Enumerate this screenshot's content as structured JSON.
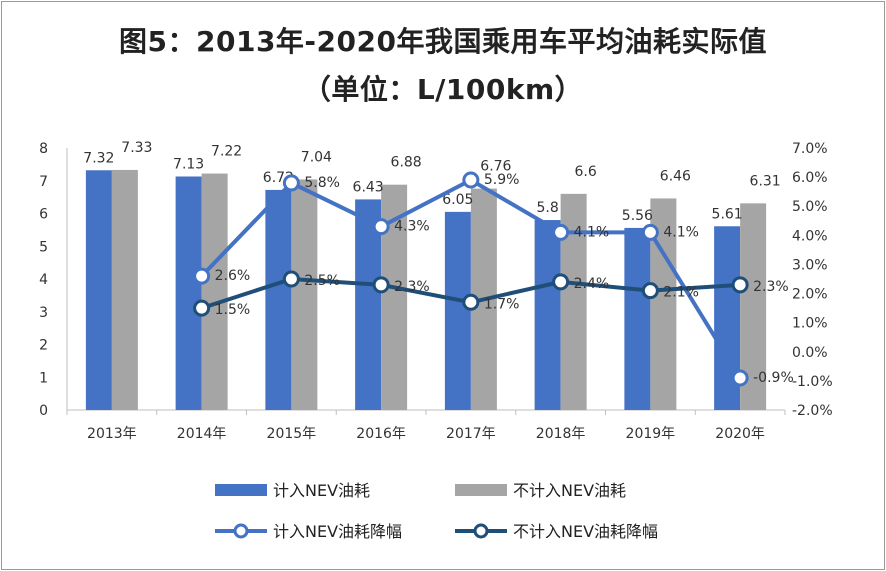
{
  "chart_data": {
    "type": "bar+line",
    "title": "图5：2013年-2020年我国乘用车平均油耗实际值",
    "subtitle": "（单位：L/100km）",
    "categories": [
      "2013年",
      "2014年",
      "2015年",
      "2016年",
      "2017年",
      "2018年",
      "2019年",
      "2020年"
    ],
    "left_axis": {
      "ylim": [
        0,
        8
      ],
      "ticks": [
        "0",
        "1",
        "2",
        "3",
        "4",
        "5",
        "6",
        "7",
        "8"
      ]
    },
    "right_axis": {
      "ylim": [
        -2.0,
        7.0
      ],
      "ticks": [
        "-2.0%",
        "-1.0%",
        "0.0%",
        "1.0%",
        "2.0%",
        "3.0%",
        "4.0%",
        "5.0%",
        "6.0%",
        "7.0%"
      ]
    },
    "bar_series": [
      {
        "name": "计入NEV油耗",
        "color": "#4472c4",
        "values": [
          7.32,
          7.13,
          6.72,
          6.43,
          6.05,
          5.8,
          5.56,
          5.61
        ],
        "labels": [
          "7.32",
          "7.13",
          "6.72",
          "6.43",
          "6.05",
          "5.8",
          "5.56",
          "5.61"
        ]
      },
      {
        "name": "不计入NEV油耗",
        "color": "#a5a5a5",
        "values": [
          7.33,
          7.22,
          7.04,
          6.88,
          6.76,
          6.6,
          6.46,
          6.31
        ],
        "labels": [
          "7.33",
          "7.22",
          "7.04",
          "6.88",
          "6.76",
          "6.6",
          "6.46",
          "6.31"
        ]
      }
    ],
    "line_series": [
      {
        "name": "计入NEV油耗降幅",
        "color": "#4472c4",
        "values": [
          null,
          2.6,
          5.8,
          4.3,
          5.9,
          4.1,
          4.1,
          -0.9
        ],
        "labels": [
          "",
          "2.6%",
          "5.8%",
          "4.3%",
          "5.9%",
          "4.1%",
          "4.1%",
          "-0.9%"
        ]
      },
      {
        "name": "不计入NEV油耗降幅",
        "color": "#1f4e79",
        "values": [
          null,
          1.5,
          2.5,
          2.3,
          1.7,
          2.4,
          2.1,
          2.3
        ],
        "labels": [
          "",
          "1.5%",
          "2.5%",
          "2.3%",
          "1.7%",
          "2.4%",
          "2.1%",
          "2.3%"
        ]
      }
    ],
    "legend": [
      "计入NEV油耗",
      "不计入NEV油耗",
      "计入NEV油耗降幅",
      "不计入NEV油耗降幅"
    ],
    "legend_position": "bottom",
    "grid": false
  }
}
